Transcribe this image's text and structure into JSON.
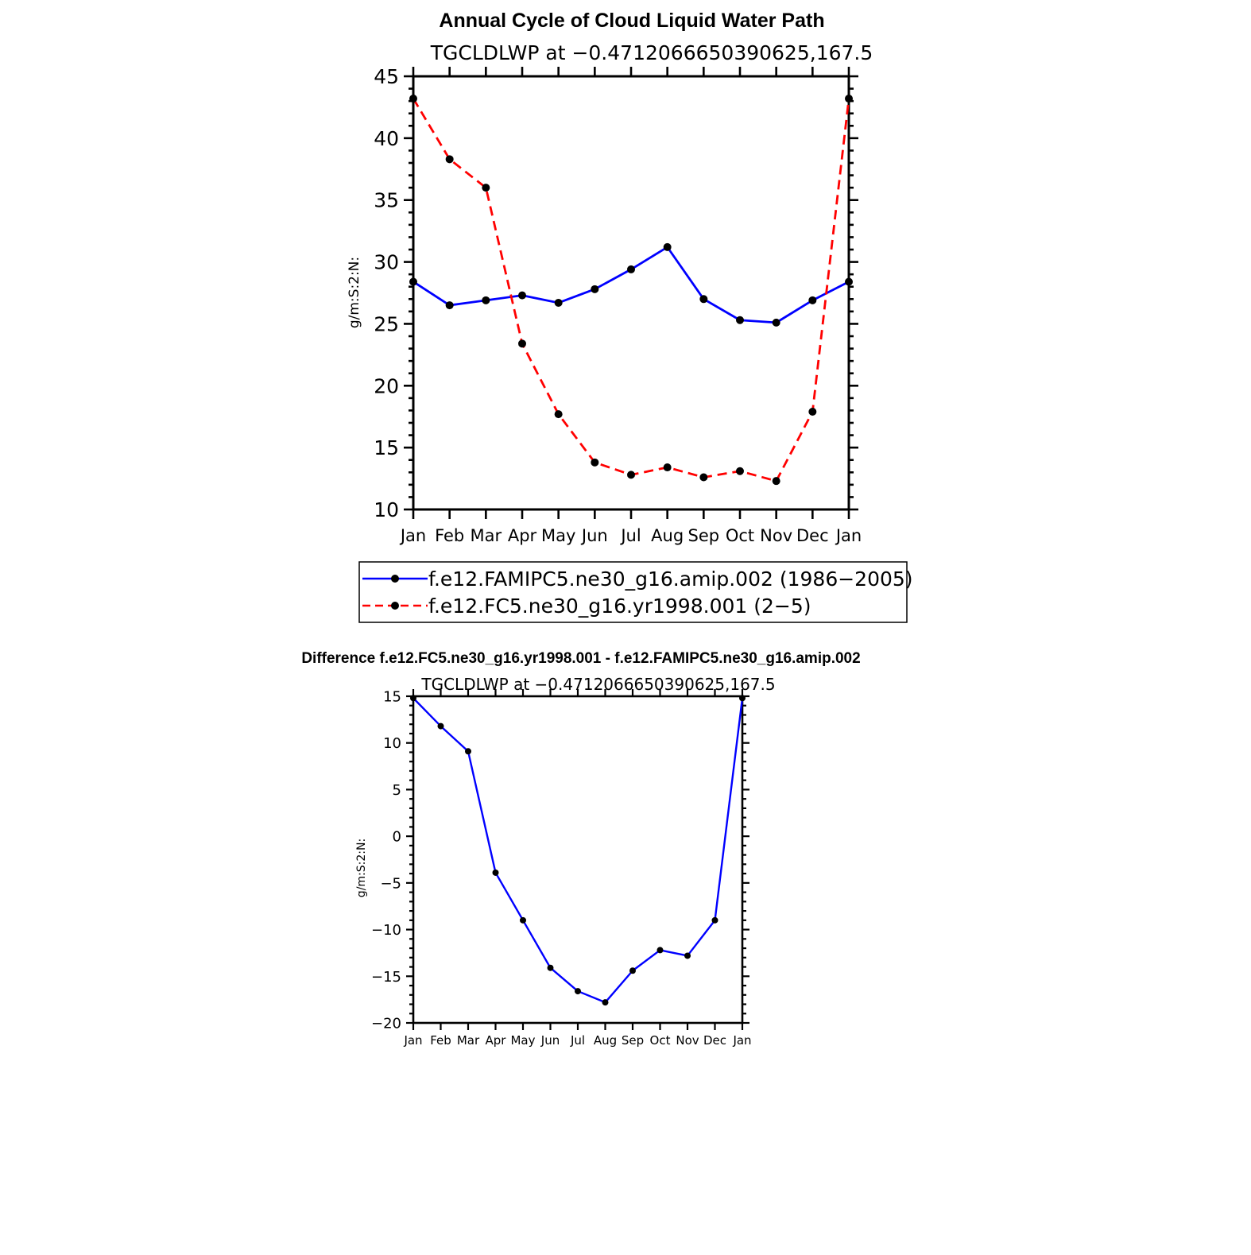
{
  "chart_data": [
    {
      "type": "line",
      "title": "Annual Cycle of Cloud Liquid Water Path",
      "subtitle": "TGCLDLWP at −0.4712066650390625,167.5",
      "xlabel": "",
      "ylabel": "g/m:S:2:N:",
      "categories": [
        "Jan",
        "Feb",
        "Mar",
        "Apr",
        "May",
        "Jun",
        "Jul",
        "Aug",
        "Sep",
        "Oct",
        "Nov",
        "Dec",
        "Jan"
      ],
      "ylim": [
        10,
        45
      ],
      "yticks": [
        10,
        15,
        20,
        25,
        30,
        35,
        40,
        45
      ],
      "series": [
        {
          "name": "f.e12.FAMIPC5.ne30_g16.amip.002 (1986−2005)",
          "color": "#0000ff",
          "dash": "solid",
          "values": [
            28.4,
            26.5,
            26.9,
            27.3,
            26.7,
            27.8,
            29.4,
            31.2,
            27.0,
            25.3,
            25.1,
            26.9,
            28.4
          ]
        },
        {
          "name": "f.e12.FC5.ne30_g16.yr1998.001 (2−5)",
          "color": "#ff0000",
          "dash": "dashed",
          "values": [
            43.2,
            38.3,
            36.0,
            23.4,
            17.7,
            13.8,
            12.8,
            13.4,
            12.6,
            13.1,
            12.3,
            17.9,
            43.2
          ]
        }
      ],
      "legend": "below"
    },
    {
      "type": "line",
      "title": "Difference f.e12.FC5.ne30_g16.yr1998.001 - f.e12.FAMIPC5.ne30_g16.amip.002",
      "subtitle": "TGCLDLWP at −0.4712066650390625,167.5",
      "xlabel": "",
      "ylabel": "g/m:S:2:N:",
      "categories": [
        "Jan",
        "Feb",
        "Mar",
        "Apr",
        "May",
        "Jun",
        "Jul",
        "Aug",
        "Sep",
        "Oct",
        "Nov",
        "Dec",
        "Jan"
      ],
      "ylim": [
        -20,
        15
      ],
      "yticks": [
        -20,
        -15,
        -10,
        -5,
        0,
        5,
        10,
        15
      ],
      "ytick_labels": [
        "−20",
        "−15",
        "−10",
        "−5",
        "0",
        "5",
        "10",
        "15"
      ],
      "series": [
        {
          "name": "Difference",
          "color": "#0000ff",
          "dash": "solid",
          "values": [
            14.8,
            11.8,
            9.1,
            -3.9,
            -9.0,
            -14.1,
            -16.6,
            -17.8,
            -14.4,
            -12.2,
            -12.8,
            -9.0,
            14.8
          ]
        }
      ]
    }
  ]
}
